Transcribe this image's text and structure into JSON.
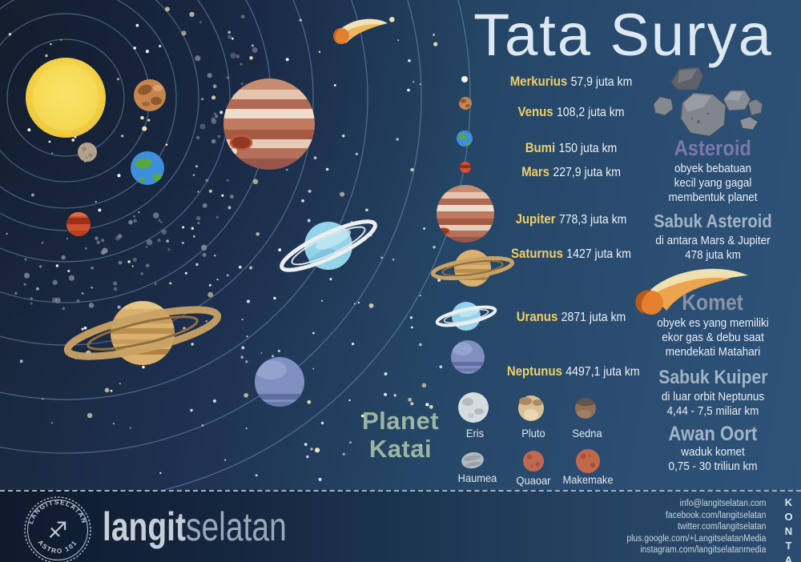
{
  "title": "Tata Surya",
  "colors": {
    "background_left": "#192639",
    "background_right": "#2e5378",
    "planet_name_accent": "#f0cf66",
    "asteroid_heading": "#7b77ad",
    "komet_heading": "#8a93a8",
    "belt_heading": "#a2b4c5",
    "dwarf_heading": "#9cb5a3",
    "title_color": "#dce8f2"
  },
  "planets": [
    {
      "name": "Merkurius",
      "distance": "57,9 juta km"
    },
    {
      "name": "Venus",
      "distance": "108,2 juta km"
    },
    {
      "name": "Bumi",
      "distance": "150 juta km"
    },
    {
      "name": "Mars",
      "distance": "227,9 juta km"
    },
    {
      "name": "Jupiter",
      "distance": "778,3 juta km"
    },
    {
      "name": "Saturnus",
      "distance": "1427 juta km"
    },
    {
      "name": "Uranus",
      "distance": "2871 juta km"
    },
    {
      "name": "Neptunus",
      "distance": "4497,1 juta km"
    }
  ],
  "dwarf": {
    "heading": "Planet Katai",
    "items": [
      "Eris",
      "Pluto",
      "Sedna",
      "Haumea",
      "Quaoar",
      "Makemake"
    ]
  },
  "sections": {
    "asteroid": {
      "heading": "Asteroid",
      "desc": [
        "obyek bebatuan",
        "kecil yang gagal",
        "membentuk planet"
      ]
    },
    "sabuk_asteroid": {
      "heading": "Sabuk Asteroid",
      "desc": [
        "di antara Mars & Jupiter",
        "478 juta km"
      ]
    },
    "komet": {
      "heading": "Komet",
      "desc": [
        "obyek es yang memiliki",
        "ekor gas & debu saat",
        "mendekati Matahari"
      ]
    },
    "sabuk_kuiper": {
      "heading": "Sabuk Kuiper",
      "desc": [
        "di luar orbit Neptunus",
        "4,44 - 7,5 miliar km"
      ]
    },
    "awan_oort": {
      "heading": "Awan Oort",
      "desc": [
        "waduk komet",
        "0,75 - 30 triliun km"
      ]
    }
  },
  "footer": {
    "stamp_top": "LANGITSELATAN",
    "stamp_bottom": "ASTRO 101",
    "stamp_glyph": "♐",
    "brand_bold": "langit",
    "brand_light": "selatan",
    "kontak_label": "KONTAK",
    "contacts": [
      "info@langitselatan.com",
      "facebook.com/langitselatan",
      "twitter.com/langitselatan",
      "plus.google.com/+LangitselatanMedia",
      "instagram.com/langitselatanmedia"
    ]
  }
}
